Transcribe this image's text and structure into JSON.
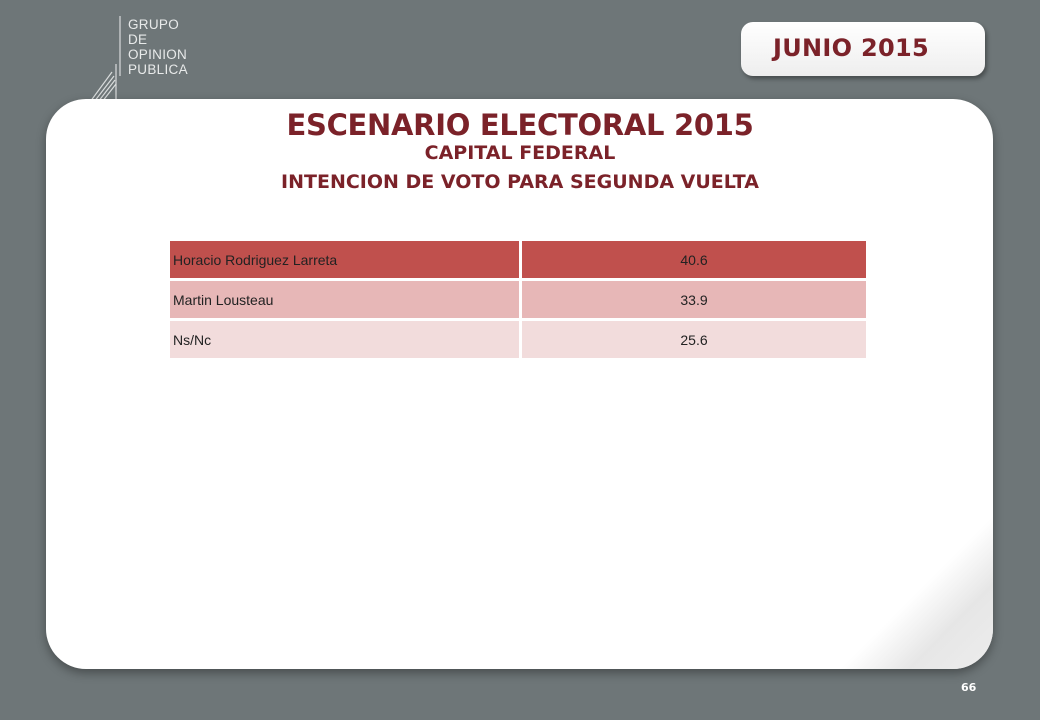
{
  "logo": {
    "lines": [
      "GRUPO",
      "DE",
      "OPINION",
      "PUBLICA"
    ]
  },
  "date_tab": {
    "label": "JUNIO 2015"
  },
  "titles": {
    "main": "ESCENARIO ELECTORAL 2015",
    "subtitle": "CAPITAL FEDERAL",
    "subtitle2": "INTENCION DE VOTO PARA SEGUNDA VUELTA"
  },
  "table": {
    "rows": [
      {
        "name": "Horacio Rodriguez Larreta",
        "value": "40.6"
      },
      {
        "name": "Martin Lousteau",
        "value": "33.9"
      },
      {
        "name": "Ns/Nc",
        "value": "25.6"
      }
    ]
  },
  "colors": {
    "title": "#7b2229",
    "row_primary": "#c0504d",
    "row_secondary": "#e7b7b7",
    "row_tertiary": "#f2dcdc",
    "background": "#6e7678"
  },
  "page_number": "66"
}
